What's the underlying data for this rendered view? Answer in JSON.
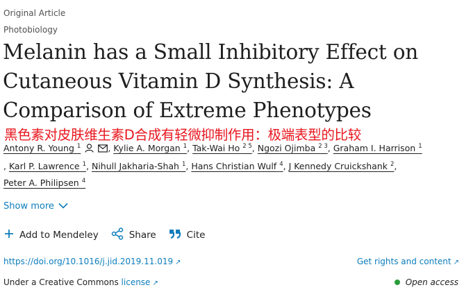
{
  "header": {
    "article_type": "Original Article",
    "subject": "Photobiology"
  },
  "title": {
    "line1": "Melanin has a Small Inhibitory Effect on",
    "line2": "Cutaneous Vitamin D Synthesis: A",
    "line3": "Comparison of Extreme Phenotypes"
  },
  "translation_overlay": "黑色素对皮肤维生素D合成有轻微抑制作用：极端表型的比较",
  "authors": [
    {
      "name": "Antony R. Young",
      "aff": "1"
    },
    {
      "name": "Kylie A. Morgan",
      "aff": "1"
    },
    {
      "name": "Tak-Wai Ho",
      "aff": "2 5"
    },
    {
      "name": "Ngozi Ojimba",
      "aff": "2 3"
    },
    {
      "name": "Graham I. Harrison",
      "aff": "1"
    },
    {
      "name": "Karl P. Lawrence",
      "aff": "1"
    },
    {
      "name": "Nihull Jakharia-Shah",
      "aff": "1"
    },
    {
      "name": "Hans Christian Wulf",
      "aff": "4"
    },
    {
      "name": "J Kennedy Cruickshank",
      "aff": "2"
    },
    {
      "name": "Peter A. Philipsen",
      "aff": "4"
    }
  ],
  "show_more": "Show more",
  "actions": {
    "mendeley": "Add to Mendeley",
    "share": "Share",
    "cite": "Cite"
  },
  "doi": "https://doi.org/10.1016/j.jid.2019.11.019",
  "rights": "Get rights and content",
  "license": {
    "prefix": "Under a Creative Commons ",
    "link": "license"
  },
  "open_access": "Open access",
  "colors": {
    "link": "#0c7dbb",
    "overlay_red": "#e8161e",
    "oa_green": "#2a9d3a"
  }
}
